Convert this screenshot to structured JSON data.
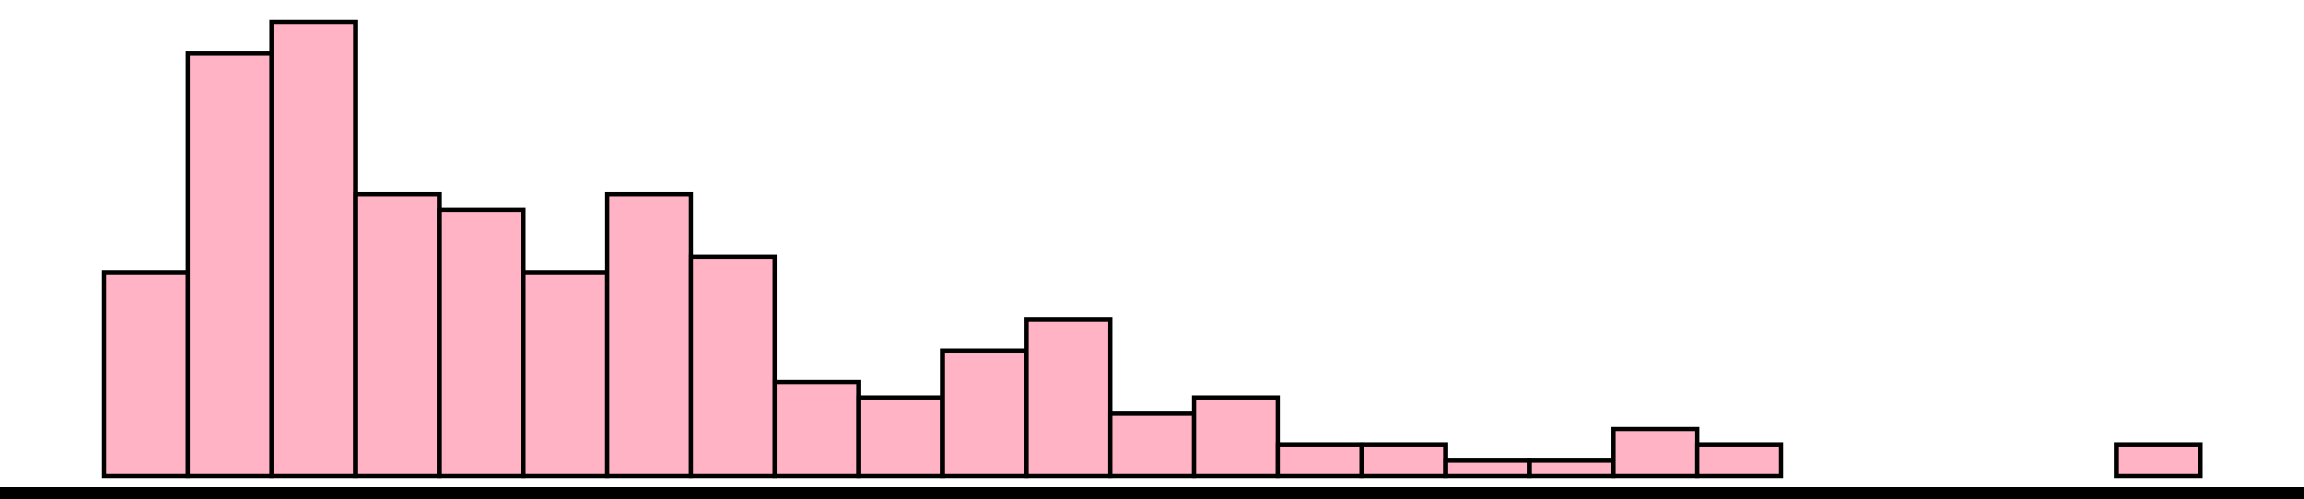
{
  "chart_data": {
    "type": "bar",
    "title": "",
    "xlabel": "",
    "ylabel": "",
    "x_bins": 25,
    "values": [
      13,
      27,
      29,
      18,
      17,
      13,
      18,
      14,
      6,
      5,
      8,
      10,
      4,
      5,
      2,
      2,
      1,
      1,
      3,
      2,
      0,
      0,
      0,
      0,
      2
    ],
    "ylim": [
      0,
      30
    ],
    "grid": false,
    "legend": "none",
    "colors": {
      "bar_fill": "#ffb3c4",
      "bar_edge": "#000000",
      "axis": "#000000"
    }
  }
}
